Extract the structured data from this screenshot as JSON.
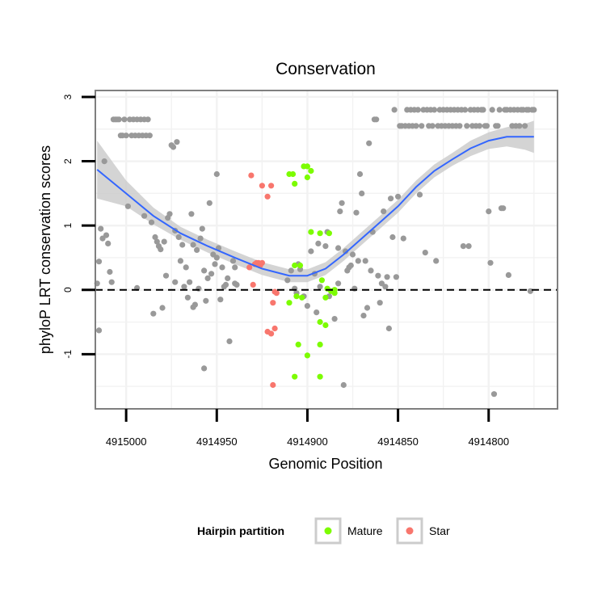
{
  "chart_data": {
    "type": "scatter",
    "title": "Conservation",
    "xlabel": "Genomic Position",
    "ylabel": "phyloP LRT conservation scores",
    "x_reversed": true,
    "xlim": [
      4915017,
      4914762
    ],
    "ylim": [
      -1.85,
      3.1
    ],
    "x_ticks": [
      4915000,
      4914950,
      4914900,
      4914850,
      4914800
    ],
    "x_tick_labels": [
      "4915000",
      "4914950",
      "4914900",
      "4914850",
      "4914800"
    ],
    "y_ticks": [
      -1,
      0,
      1,
      2,
      3
    ],
    "y_tick_labels": [
      "-1",
      "0",
      "1",
      "2",
      "3"
    ],
    "grid": true,
    "reference_line": {
      "y": 0,
      "style": "dashed"
    },
    "legend": {
      "title": "Hairpin partition",
      "position": "bottom",
      "entries": [
        {
          "name": "Mature",
          "color": "#7CFC00"
        },
        {
          "name": "Star",
          "color": "#F8766D"
        }
      ]
    },
    "colors": {
      "other": "#999999",
      "mature": "#7CFC00",
      "star": "#F8766D",
      "smooth": "#3366FF",
      "ribbon": "#CCCCCC"
    },
    "series": [
      {
        "key": "other",
        "points": [
          [
            4915016,
            0.1
          ],
          [
            4915015,
            -0.63
          ],
          [
            4915015,
            0.44
          ],
          [
            4915014,
            0.95
          ],
          [
            4915013,
            0.8
          ],
          [
            4915012,
            2.0
          ],
          [
            4915011,
            0.85
          ],
          [
            4915010,
            0.72
          ],
          [
            4915009,
            0.28
          ],
          [
            4915008,
            0.12
          ],
          [
            4915007,
            2.65
          ],
          [
            4915006,
            2.65
          ],
          [
            4915005,
            2.65
          ],
          [
            4915004,
            2.65
          ],
          [
            4915003,
            2.4
          ],
          [
            4915002,
            2.4
          ],
          [
            4915001,
            2.65
          ],
          [
            4915000,
            2.4
          ],
          [
            4914999,
            1.3
          ],
          [
            4914998,
            2.65
          ],
          [
            4914997,
            2.4
          ],
          [
            4914996,
            2.65
          ],
          [
            4914995,
            2.4
          ],
          [
            4914994,
            2.65
          ],
          [
            4914993,
            2.4
          ],
          [
            4914992,
            2.65
          ],
          [
            4914991,
            2.4
          ],
          [
            4914990,
            2.65
          ],
          [
            4914989,
            2.4
          ],
          [
            4914988,
            2.65
          ],
          [
            4914987,
            2.4
          ],
          [
            4914994,
            0.03
          ],
          [
            4914990,
            1.15
          ],
          [
            4914986,
            1.05
          ],
          [
            4914985,
            -0.37
          ],
          [
            4914984,
            0.82
          ],
          [
            4914983,
            0.75
          ],
          [
            4914982,
            0.68
          ],
          [
            4914981,
            0.63
          ],
          [
            4914980,
            -0.28
          ],
          [
            4914979,
            0.75
          ],
          [
            4914978,
            0.22
          ],
          [
            4914977,
            1.12
          ],
          [
            4914976,
            1.18
          ],
          [
            4914975,
            2.25
          ],
          [
            4914974,
            2.22
          ],
          [
            4914973,
            0.92
          ],
          [
            4914973,
            0.12
          ],
          [
            4914972,
            2.3
          ],
          [
            4914971,
            0.82
          ],
          [
            4914970,
            0.45
          ],
          [
            4914969,
            0.7
          ],
          [
            4914968,
            0.05
          ],
          [
            4914967,
            0.35
          ],
          [
            4914966,
            -0.12
          ],
          [
            4914965,
            0.12
          ],
          [
            4914964,
            1.18
          ],
          [
            4914963,
            0.7
          ],
          [
            4914963,
            -0.27
          ],
          [
            4914962,
            -0.23
          ],
          [
            4914961,
            0.62
          ],
          [
            4914960,
            0.02
          ],
          [
            4914959,
            0.8
          ],
          [
            4914958,
            0.95
          ],
          [
            4914957,
            0.3
          ],
          [
            4914956,
            -0.17
          ],
          [
            4914955,
            0.18
          ],
          [
            4914954,
            1.35
          ],
          [
            4914953,
            0.25
          ],
          [
            4914952,
            0.55
          ],
          [
            4914951,
            0.4
          ],
          [
            4914950,
            1.8
          ],
          [
            4914950,
            0.5
          ],
          [
            4914949,
            0.65
          ],
          [
            4914948,
            -0.15
          ],
          [
            4914947,
            0.35
          ],
          [
            4914946,
            0.05
          ],
          [
            4914945,
            0.08
          ],
          [
            4914944,
            0.18
          ],
          [
            4914943,
            -0.8
          ],
          [
            4914941,
            0.45
          ],
          [
            4914940,
            0.35
          ],
          [
            4914940,
            0.1
          ],
          [
            4914939,
            0.08
          ],
          [
            4914957,
            -1.22
          ],
          [
            4914911,
            0.15
          ],
          [
            4914909,
            0.3
          ],
          [
            4914907,
            0.02
          ],
          [
            4914906,
            -0.05
          ],
          [
            4914905,
            0.4
          ],
          [
            4914904,
            0.32
          ],
          [
            4914902,
            -0.1
          ],
          [
            4914900,
            -0.25
          ],
          [
            4914898,
            0.6
          ],
          [
            4914896,
            0.25
          ],
          [
            4914895,
            -0.35
          ],
          [
            4914894,
            0.72
          ],
          [
            4914893,
            0.05
          ],
          [
            4914890,
            0.68
          ],
          [
            4914889,
            0.9
          ],
          [
            4914888,
            -0.1
          ],
          [
            4914885,
            -0.45
          ],
          [
            4914883,
            0.1
          ],
          [
            4914883,
            0.65
          ],
          [
            4914882,
            1.22
          ],
          [
            4914881,
            1.35
          ],
          [
            4914880,
            -1.48
          ],
          [
            4914879,
            0.6
          ],
          [
            4914878,
            0.3
          ],
          [
            4914877,
            0.35
          ],
          [
            4914876,
            0.38
          ],
          [
            4914875,
            0.55
          ],
          [
            4914874,
            0.02
          ],
          [
            4914873,
            1.2
          ],
          [
            4914872,
            0.45
          ],
          [
            4914871,
            1.8
          ],
          [
            4914870,
            1.5
          ],
          [
            4914869,
            -0.4
          ],
          [
            4914868,
            0.45
          ],
          [
            4914867,
            -0.28
          ],
          [
            4914866,
            2.28
          ],
          [
            4914865,
            0.3
          ],
          [
            4914864,
            0.9
          ],
          [
            4914863,
            2.65
          ],
          [
            4914862,
            2.65
          ],
          [
            4914861,
            0.22
          ],
          [
            4914860,
            -0.2
          ],
          [
            4914859,
            0.1
          ],
          [
            4914858,
            1.22
          ],
          [
            4914857,
            0.05
          ],
          [
            4914856,
            0.2
          ],
          [
            4914855,
            -0.6
          ],
          [
            4914854,
            1.42
          ],
          [
            4914853,
            0.82
          ],
          [
            4914852,
            2.8
          ],
          [
            4914851,
            0.2
          ],
          [
            4914850,
            1.45
          ],
          [
            4914849,
            2.55
          ],
          [
            4914848,
            2.55
          ],
          [
            4914847,
            0.8
          ],
          [
            4914846,
            2.55
          ],
          [
            4914845,
            2.8
          ],
          [
            4914844,
            2.55
          ],
          [
            4914843,
            2.8
          ],
          [
            4914842,
            2.55
          ],
          [
            4914841,
            2.8
          ],
          [
            4914840,
            2.55
          ],
          [
            4914839,
            2.8
          ],
          [
            4914838,
            1.48
          ],
          [
            4914837,
            2.55
          ],
          [
            4914836,
            2.8
          ],
          [
            4914835,
            0.58
          ],
          [
            4914834,
            2.8
          ],
          [
            4914833,
            2.55
          ],
          [
            4914832,
            2.8
          ],
          [
            4914831,
            2.55
          ],
          [
            4914830,
            2.8
          ],
          [
            4914829,
            0.45
          ],
          [
            4914828,
            2.55
          ],
          [
            4914827,
            2.8
          ],
          [
            4914826,
            2.55
          ],
          [
            4914825,
            2.8
          ],
          [
            4914824,
            2.55
          ],
          [
            4914823,
            2.8
          ],
          [
            4914822,
            2.55
          ],
          [
            4914821,
            2.8
          ],
          [
            4914820,
            2.55
          ],
          [
            4914819,
            2.8
          ],
          [
            4914818,
            2.55
          ],
          [
            4914817,
            2.8
          ],
          [
            4914816,
            2.55
          ],
          [
            4914815,
            2.8
          ],
          [
            4914814,
            0.68
          ],
          [
            4914813,
            2.8
          ],
          [
            4914812,
            2.55
          ],
          [
            4914811,
            0.68
          ],
          [
            4914810,
            2.8
          ],
          [
            4914809,
            2.55
          ],
          [
            4914808,
            2.8
          ],
          [
            4914807,
            2.55
          ],
          [
            4914806,
            2.8
          ],
          [
            4914805,
            2.55
          ],
          [
            4914804,
            2.8
          ],
          [
            4914803,
            2.8
          ],
          [
            4914802,
            2.55
          ],
          [
            4914801,
            2.55
          ],
          [
            4914800,
            1.22
          ],
          [
            4914799,
            0.42
          ],
          [
            4914798,
            2.8
          ],
          [
            4914797,
            -1.62
          ],
          [
            4914796,
            2.55
          ],
          [
            4914795,
            2.55
          ],
          [
            4914794,
            2.8
          ],
          [
            4914793,
            1.27
          ],
          [
            4914792,
            1.27
          ],
          [
            4914791,
            2.8
          ],
          [
            4914790,
            2.8
          ],
          [
            4914789,
            0.23
          ],
          [
            4914788,
            2.8
          ],
          [
            4914787,
            2.55
          ],
          [
            4914786,
            2.8
          ],
          [
            4914785,
            2.55
          ],
          [
            4914784,
            2.8
          ],
          [
            4914783,
            2.55
          ],
          [
            4914782,
            2.8
          ],
          [
            4914781,
            2.8
          ],
          [
            4914780,
            2.55
          ],
          [
            4914779,
            2.8
          ],
          [
            4914778,
            2.8
          ],
          [
            4914777,
            -0.02
          ],
          [
            4914776,
            2.8
          ],
          [
            4914775,
            2.8
          ]
        ]
      },
      {
        "key": "star",
        "name": "Star",
        "points": [
          [
            4914932,
            0.35
          ],
          [
            4914930,
            0.08
          ],
          [
            4914929,
            0.4
          ],
          [
            4914928,
            0.42
          ],
          [
            4914927,
            0.42
          ],
          [
            4914926,
            0.38
          ],
          [
            4914925,
            0.42
          ],
          [
            4914931,
            1.78
          ],
          [
            4914925,
            1.62
          ],
          [
            4914922,
            1.45
          ],
          [
            4914920,
            1.62
          ],
          [
            4914922,
            -0.65
          ],
          [
            4914920,
            -0.68
          ],
          [
            4914918,
            -0.6
          ],
          [
            4914919,
            -1.48
          ],
          [
            4914918,
            -0.03
          ],
          [
            4914919,
            -0.2
          ],
          [
            4914917,
            -0.05
          ]
        ]
      },
      {
        "key": "mature",
        "name": "Mature",
        "points": [
          [
            4914902,
            1.92
          ],
          [
            4914900,
            1.92
          ],
          [
            4914898,
            1.85
          ],
          [
            4914900,
            1.75
          ],
          [
            4914908,
            1.8
          ],
          [
            4914910,
            1.8
          ],
          [
            4914907,
            1.65
          ],
          [
            4914904,
            0.38
          ],
          [
            4914907,
            0.38
          ],
          [
            4914898,
            0.9
          ],
          [
            4914893,
            0.88
          ],
          [
            4914888,
            0.88
          ],
          [
            4914892,
            0.15
          ],
          [
            4914889,
            0.02
          ],
          [
            4914885,
            0.0
          ],
          [
            4914887,
            -0.02
          ],
          [
            4914905,
            -0.85
          ],
          [
            4914900,
            -1.02
          ],
          [
            4914893,
            -0.85
          ],
          [
            4914907,
            -1.35
          ],
          [
            4914893,
            -1.35
          ],
          [
            4914906,
            -0.1
          ],
          [
            4914890,
            -0.12
          ],
          [
            4914903,
            -0.12
          ],
          [
            4914893,
            -0.5
          ],
          [
            4914890,
            -0.55
          ],
          [
            4914910,
            -0.2
          ],
          [
            4914885,
            -0.05
          ]
        ]
      }
    ],
    "smooth_line": {
      "x": [
        4915016,
        4915000,
        4914985,
        4914970,
        4914955,
        4914940,
        4914925,
        4914910,
        4914900,
        4914890,
        4914880,
        4914870,
        4914860,
        4914850,
        4914840,
        4914830,
        4914820,
        4914810,
        4914800,
        4914790,
        4914780,
        4914775
      ],
      "y": [
        1.87,
        1.5,
        1.15,
        0.88,
        0.68,
        0.5,
        0.33,
        0.22,
        0.22,
        0.33,
        0.55,
        0.8,
        1.05,
        1.3,
        1.6,
        1.85,
        2.03,
        2.2,
        2.32,
        2.38,
        2.38,
        2.38
      ],
      "se": [
        0.45,
        0.2,
        0.13,
        0.1,
        0.1,
        0.1,
        0.1,
        0.1,
        0.1,
        0.1,
        0.1,
        0.1,
        0.1,
        0.1,
        0.1,
        0.1,
        0.1,
        0.12,
        0.13,
        0.15,
        0.2,
        0.25
      ]
    }
  }
}
